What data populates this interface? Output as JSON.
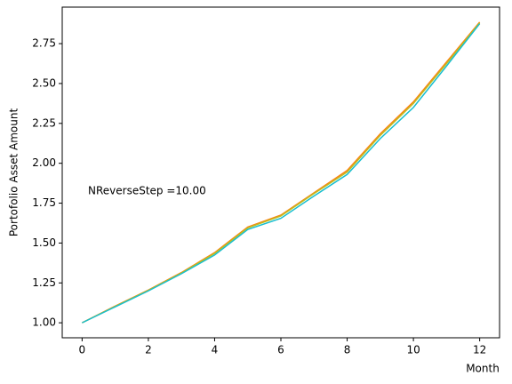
{
  "chart_data": {
    "type": "line",
    "xlabel": "Month",
    "ylabel": "Portofolio Asset Amount",
    "annotation": "NReverseStep =10.00",
    "x": [
      0,
      1,
      2,
      3,
      4,
      5,
      6,
      7,
      8,
      9,
      10,
      11,
      12
    ],
    "series": [
      {
        "color": "#ff7f0e",
        "values": [
          1.0,
          1.105,
          1.205,
          1.315,
          1.44,
          1.6,
          1.675,
          1.815,
          1.955,
          2.185,
          2.385,
          2.635,
          2.885
        ]
      },
      {
        "color": "#bcbd22",
        "values": [
          1.0,
          1.103,
          1.203,
          1.312,
          1.435,
          1.595,
          1.67,
          1.81,
          1.945,
          2.175,
          2.375,
          2.625,
          2.88
        ]
      },
      {
        "color": "#17becf",
        "values": [
          1.0,
          1.1,
          1.2,
          1.308,
          1.425,
          1.585,
          1.655,
          1.795,
          1.93,
          2.155,
          2.35,
          2.61,
          2.875
        ]
      }
    ],
    "xlim": [
      -0.6,
      12.6
    ],
    "xticks": [
      0,
      2,
      4,
      6,
      8,
      10,
      12
    ],
    "ylim": [
      0.906,
      2.979
    ],
    "yticks": [
      {
        "value": 1,
        "label": "1.00"
      },
      {
        "value": 1.25,
        "label": "1.25"
      },
      {
        "value": 1.5,
        "label": "1.50"
      },
      {
        "value": 1.75,
        "label": "1.75"
      },
      {
        "value": 2,
        "label": "2.00"
      },
      {
        "value": 2.25,
        "label": "2.25"
      },
      {
        "value": 2.5,
        "label": "2.50"
      },
      {
        "value": 2.75,
        "label": "2.75"
      }
    ]
  }
}
